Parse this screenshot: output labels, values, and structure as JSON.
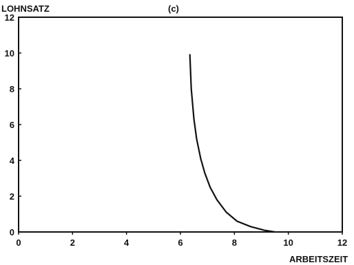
{
  "chart_data": {
    "type": "line",
    "panel_label": "(c)",
    "xlabel": "ARBEITSZEIT",
    "ylabel": "LOHNSATZ",
    "xlim": [
      0,
      12
    ],
    "ylim": [
      0,
      12
    ],
    "xticks": [
      0,
      2,
      4,
      6,
      8,
      10,
      12
    ],
    "yticks": [
      0,
      2,
      4,
      6,
      8,
      10,
      12
    ],
    "grid": false,
    "series": [
      {
        "x": [
          6.35,
          6.4,
          6.5,
          6.6,
          6.75,
          6.9,
          7.1,
          7.35,
          7.7,
          8.1,
          8.6,
          9.1,
          9.5
        ],
        "y": [
          9.9,
          8.0,
          6.3,
          5.2,
          4.1,
          3.3,
          2.5,
          1.8,
          1.1,
          0.6,
          0.3,
          0.1,
          0.0
        ]
      }
    ],
    "colors": {
      "line": "#111111",
      "axis": "#111111",
      "background": "#ffffff"
    }
  }
}
